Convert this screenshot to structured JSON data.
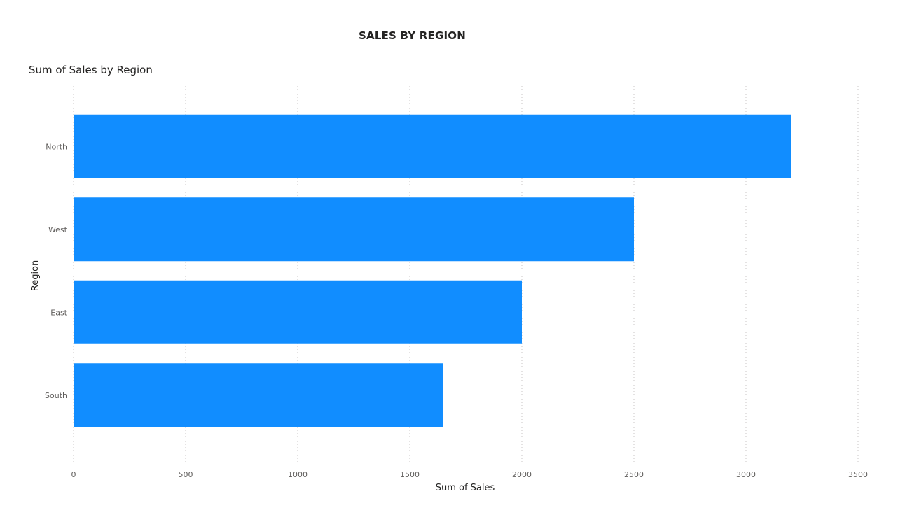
{
  "page": {
    "title": "SALES BY REGION"
  },
  "chart_data": {
    "type": "bar",
    "orientation": "horizontal",
    "title": "Sum of Sales by Region",
    "xlabel": "Sum of Sales",
    "ylabel": "Region",
    "categories": [
      "North",
      "West",
      "East",
      "South"
    ],
    "values": [
      3200,
      2500,
      2000,
      1650
    ],
    "xlim": [
      0,
      3500
    ],
    "xticks": [
      "0",
      "500",
      "1000",
      "1500",
      "2000",
      "2500",
      "3000",
      "3500"
    ],
    "grid": "vertical-dotted",
    "legend": "none",
    "bar_color": "#118DFF"
  }
}
